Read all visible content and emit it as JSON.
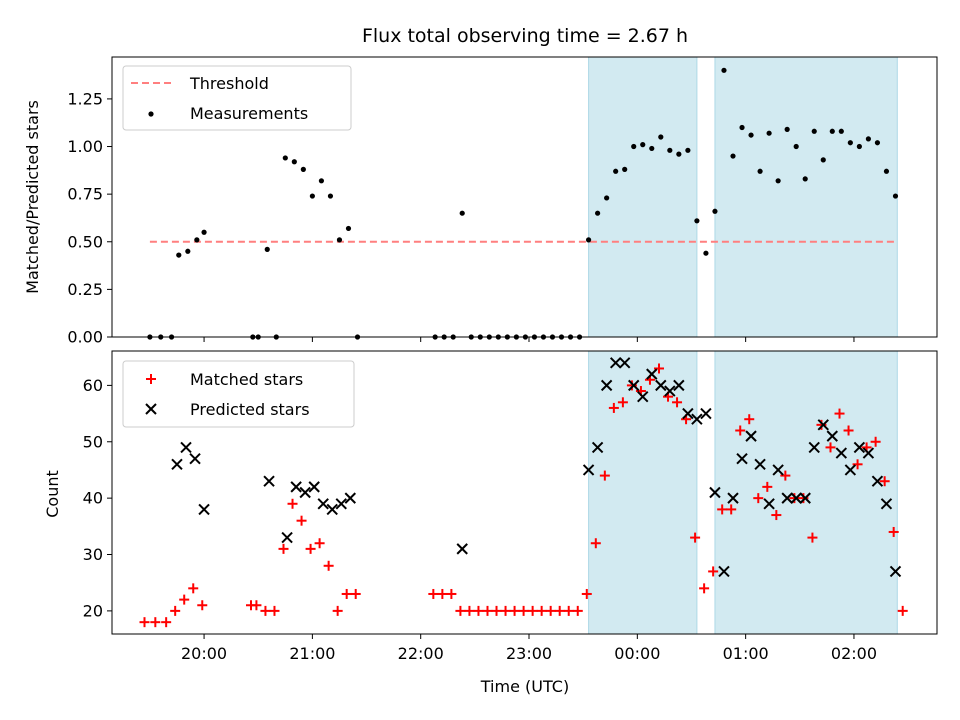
{
  "chart_data": [
    {
      "type": "scatter",
      "title": "Flux total observing time = 2.67 h",
      "xlabel": "",
      "ylabel": "Matched/Predicted stars",
      "xlim": [
        "19:09",
        "02:46"
      ],
      "ylim": [
        0,
        1.47
      ],
      "yticks": [
        "0.00",
        "0.25",
        "0.50",
        "0.75",
        "1.00",
        "1.25"
      ],
      "legend_position": "upper-left",
      "series": [
        {
          "name": "Threshold",
          "kind": "dashed-line",
          "color": "#ff7f7f",
          "x": [
            "19:30",
            "02:24"
          ],
          "y": [
            0.5,
            0.5
          ]
        },
        {
          "name": "Measurements",
          "kind": "points",
          "color": "#000000",
          "points": [
            [
              "19:30",
              0
            ],
            [
              "19:36",
              0
            ],
            [
              "19:42",
              0
            ],
            [
              "19:46",
              0.43
            ],
            [
              "19:51",
              0.45
            ],
            [
              "19:56",
              0.51
            ],
            [
              "20:00",
              0.55
            ],
            [
              "20:27",
              0
            ],
            [
              "20:30",
              0
            ],
            [
              "20:35",
              0.46
            ],
            [
              "20:40",
              0
            ],
            [
              "20:45",
              0.94
            ],
            [
              "20:50",
              0.92
            ],
            [
              "20:55",
              0.88
            ],
            [
              "21:00",
              0.74
            ],
            [
              "21:05",
              0.82
            ],
            [
              "21:10",
              0.74
            ],
            [
              "21:15",
              0.51
            ],
            [
              "21:20",
              0.57
            ],
            [
              "21:25",
              0
            ],
            [
              "22:08",
              0
            ],
            [
              "22:13",
              0
            ],
            [
              "22:18",
              0
            ],
            [
              "22:23",
              0.65
            ],
            [
              "22:28",
              0
            ],
            [
              "22:33",
              0
            ],
            [
              "22:38",
              0
            ],
            [
              "22:43",
              0
            ],
            [
              "22:48",
              0
            ],
            [
              "22:53",
              0
            ],
            [
              "22:58",
              0
            ],
            [
              "23:03",
              0
            ],
            [
              "23:08",
              0
            ],
            [
              "23:13",
              0
            ],
            [
              "23:18",
              0
            ],
            [
              "23:23",
              0
            ],
            [
              "23:28",
              0
            ],
            [
              "23:33",
              0.51
            ],
            [
              "23:38",
              0.65
            ],
            [
              "23:43",
              0.73
            ],
            [
              "23:48",
              0.87
            ],
            [
              "23:53",
              0.88
            ],
            [
              "23:58",
              1.0
            ],
            [
              "00:03",
              1.01
            ],
            [
              "00:08",
              0.99
            ],
            [
              "00:13",
              1.05
            ],
            [
              "00:18",
              0.98
            ],
            [
              "00:23",
              0.96
            ],
            [
              "00:28",
              0.98
            ],
            [
              "00:33",
              0.61
            ],
            [
              "00:38",
              0.44
            ],
            [
              "00:43",
              0.66
            ],
            [
              "00:48",
              1.4
            ],
            [
              "00:53",
              0.95
            ],
            [
              "00:58",
              1.1
            ],
            [
              "01:03",
              1.06
            ],
            [
              "01:08",
              0.87
            ],
            [
              "01:13",
              1.07
            ],
            [
              "01:18",
              0.82
            ],
            [
              "01:23",
              1.09
            ],
            [
              "01:28",
              1.0
            ],
            [
              "01:33",
              0.83
            ],
            [
              "01:38",
              1.08
            ],
            [
              "01:43",
              0.93
            ],
            [
              "01:48",
              1.08
            ],
            [
              "01:53",
              1.08
            ],
            [
              "01:58",
              1.02
            ],
            [
              "02:03",
              1.0
            ],
            [
              "02:08",
              1.04
            ],
            [
              "02:13",
              1.02
            ],
            [
              "02:18",
              0.87
            ],
            [
              "02:23",
              0.74
            ]
          ]
        }
      ]
    },
    {
      "type": "scatter",
      "title": "",
      "xlabel": "Time (UTC)",
      "ylabel": "Count",
      "xlim": [
        "19:09",
        "02:46"
      ],
      "ylim": [
        15.9,
        66.1
      ],
      "yticks": [
        "20",
        "30",
        "40",
        "50",
        "60"
      ],
      "xticks": [
        "20:00",
        "21:00",
        "22:00",
        "23:00",
        "00:00",
        "01:00",
        "02:00"
      ],
      "legend_position": "upper-left",
      "series": [
        {
          "name": "Matched stars",
          "marker": "plus",
          "color": "#ff0000",
          "points": [
            [
              "19:27",
              18
            ],
            [
              "19:33",
              18
            ],
            [
              "19:39",
              18
            ],
            [
              "19:44",
              20
            ],
            [
              "19:49",
              22
            ],
            [
              "19:54",
              24
            ],
            [
              "19:59",
              21
            ],
            [
              "20:26",
              21
            ],
            [
              "20:29",
              21
            ],
            [
              "20:34",
              20
            ],
            [
              "20:39",
              20
            ],
            [
              "20:44",
              31
            ],
            [
              "20:49",
              39
            ],
            [
              "20:54",
              36
            ],
            [
              "20:59",
              31
            ],
            [
              "21:04",
              32
            ],
            [
              "21:09",
              28
            ],
            [
              "21:14",
              20
            ],
            [
              "21:19",
              23
            ],
            [
              "21:24",
              23
            ],
            [
              "22:07",
              23
            ],
            [
              "22:12",
              23
            ],
            [
              "22:17",
              23
            ],
            [
              "22:22",
              20
            ],
            [
              "22:27",
              20
            ],
            [
              "22:32",
              20
            ],
            [
              "22:37",
              20
            ],
            [
              "22:42",
              20
            ],
            [
              "22:47",
              20
            ],
            [
              "22:52",
              20
            ],
            [
              "22:57",
              20
            ],
            [
              "23:02",
              20
            ],
            [
              "23:07",
              20
            ],
            [
              "23:12",
              20
            ],
            [
              "23:17",
              20
            ],
            [
              "23:22",
              20
            ],
            [
              "23:27",
              20
            ],
            [
              "23:32",
              23
            ],
            [
              "23:37",
              32
            ],
            [
              "23:42",
              44
            ],
            [
              "23:47",
              56
            ],
            [
              "23:52",
              57
            ],
            [
              "23:57",
              60
            ],
            [
              "00:02",
              59
            ],
            [
              "00:07",
              61
            ],
            [
              "00:12",
              63
            ],
            [
              "00:17",
              58
            ],
            [
              "00:22",
              57
            ],
            [
              "00:27",
              54
            ],
            [
              "00:32",
              33
            ],
            [
              "00:37",
              24
            ],
            [
              "00:42",
              27
            ],
            [
              "00:47",
              38
            ],
            [
              "00:52",
              38
            ],
            [
              "00:57",
              52
            ],
            [
              "01:02",
              54
            ],
            [
              "01:07",
              40
            ],
            [
              "01:12",
              42
            ],
            [
              "01:17",
              37
            ],
            [
              "01:22",
              44
            ],
            [
              "01:27",
              40
            ],
            [
              "01:32",
              40
            ],
            [
              "01:37",
              33
            ],
            [
              "01:42",
              53
            ],
            [
              "01:47",
              49
            ],
            [
              "01:52",
              55
            ],
            [
              "01:57",
              52
            ],
            [
              "02:02",
              46
            ],
            [
              "02:07",
              49
            ],
            [
              "02:12",
              50
            ],
            [
              "02:17",
              43
            ],
            [
              "02:22",
              34
            ],
            [
              "02:27",
              20
            ]
          ]
        },
        {
          "name": "Predicted stars",
          "marker": "x",
          "color": "#000000",
          "points": [
            [
              "19:45",
              46
            ],
            [
              "19:50",
              49
            ],
            [
              "19:55",
              47
            ],
            [
              "20:00",
              38
            ],
            [
              "20:36",
              43
            ],
            [
              "20:46",
              33
            ],
            [
              "20:51",
              42
            ],
            [
              "20:56",
              41
            ],
            [
              "21:01",
              42
            ],
            [
              "21:06",
              39
            ],
            [
              "21:11",
              38
            ],
            [
              "21:16",
              39
            ],
            [
              "21:21",
              40
            ],
            [
              "22:23",
              31
            ],
            [
              "23:33",
              45
            ],
            [
              "23:38",
              49
            ],
            [
              "23:43",
              60
            ],
            [
              "23:48",
              64
            ],
            [
              "23:53",
              64
            ],
            [
              "23:58",
              60
            ],
            [
              "00:03",
              58
            ],
            [
              "00:08",
              62
            ],
            [
              "00:13",
              60
            ],
            [
              "00:18",
              59
            ],
            [
              "00:23",
              60
            ],
            [
              "00:28",
              55
            ],
            [
              "00:33",
              54
            ],
            [
              "00:38",
              55
            ],
            [
              "00:43",
              41
            ],
            [
              "00:48",
              27
            ],
            [
              "00:53",
              40
            ],
            [
              "00:58",
              47
            ],
            [
              "01:03",
              51
            ],
            [
              "01:08",
              46
            ],
            [
              "01:13",
              39
            ],
            [
              "01:18",
              45
            ],
            [
              "01:23",
              40
            ],
            [
              "01:28",
              40
            ],
            [
              "01:33",
              40
            ],
            [
              "01:38",
              49
            ],
            [
              "01:43",
              53
            ],
            [
              "01:48",
              51
            ],
            [
              "01:53",
              48
            ],
            [
              "01:58",
              45
            ],
            [
              "02:03",
              49
            ],
            [
              "02:08",
              48
            ],
            [
              "02:13",
              43
            ],
            [
              "02:18",
              39
            ],
            [
              "02:23",
              27
            ]
          ]
        }
      ]
    }
  ],
  "highlight_color": "#add8e6",
  "highlight_intervals": [
    [
      "23:33",
      "00:33"
    ],
    [
      "00:43",
      "02:24"
    ]
  ]
}
